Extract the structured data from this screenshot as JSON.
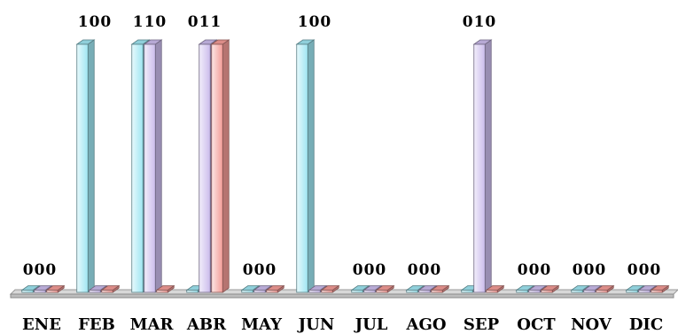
{
  "chart_data": {
    "type": "bar",
    "title": "",
    "xlabel": "",
    "ylabel": "",
    "ylim": [
      0,
      1
    ],
    "categories": [
      "ENE",
      "FEB",
      "MAR",
      "ABR",
      "MAY",
      "JUN",
      "JUL",
      "AGO",
      "SEP",
      "OCT",
      "NOV",
      "DIC"
    ],
    "series": [
      {
        "color": "#9fe6f2",
        "values": [
          0,
          1,
          1,
          0,
          0,
          1,
          0,
          0,
          0,
          0,
          0,
          0
        ]
      },
      {
        "color": "#cbbcec",
        "values": [
          0,
          0,
          1,
          1,
          0,
          0,
          0,
          0,
          1,
          0,
          0,
          0
        ]
      },
      {
        "color": "#f39b97",
        "values": [
          0,
          0,
          0,
          1,
          0,
          0,
          0,
          0,
          0,
          0,
          0,
          0
        ]
      }
    ],
    "data_labels": [
      "000",
      "100",
      "110",
      "011",
      "000",
      "100",
      "000",
      "000",
      "010",
      "000",
      "000",
      "000"
    ],
    "grid": false,
    "legend": "none",
    "style": "3d-column"
  }
}
